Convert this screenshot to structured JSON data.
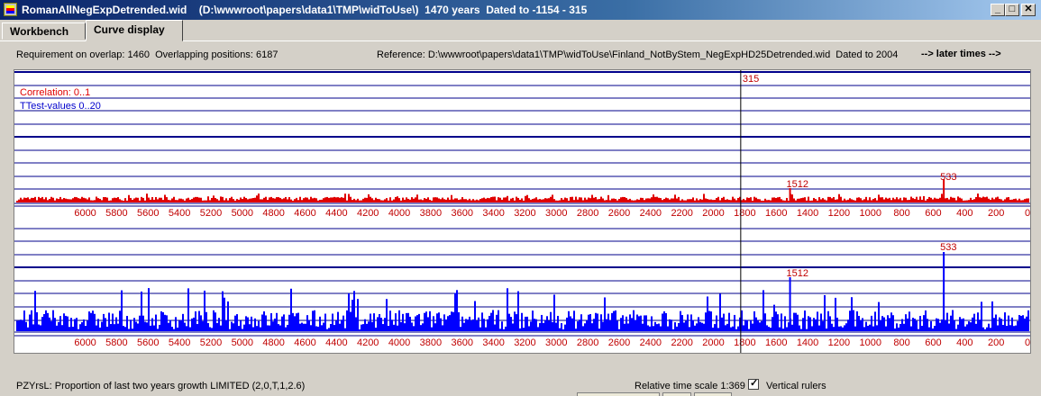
{
  "window": {
    "title": "RomanAllNegExpDetrended.wid    (D:\\wwwroot\\papers\\data1\\TMP\\widToUse\\)  1470 years  Dated to -1154 - 315",
    "min_label": "_",
    "max_label": "□",
    "close_label": "✕"
  },
  "tabs": [
    {
      "label": "Workbench"
    },
    {
      "label": "Curve display"
    }
  ],
  "info": {
    "overlap": "Requirement on overlap: 1460  Overlapping positions: 6187",
    "reference": "Reference: D:\\wwwroot\\papers\\data1\\TMP\\widToUse\\Finland_NotByStem_NegExpHD25Detrended.wid  Dated to 2004",
    "later_times": "--> later times -->"
  },
  "plot": {
    "correlation_label": "Correlation: 0..1",
    "ttest_label": "TTest-values 0..20",
    "marker_label": "315",
    "peak_labels": [
      "533",
      "1512"
    ],
    "colors": {
      "correlation": "#e00000",
      "ttest": "#0000ff",
      "grid": "#00008b",
      "axis_text": "#c00000"
    }
  },
  "chart_data": {
    "type": "bar",
    "x_ticks": [
      6000,
      5800,
      5600,
      5400,
      5200,
      5000,
      4800,
      4600,
      4400,
      4200,
      4000,
      3800,
      3600,
      3400,
      3200,
      3000,
      2800,
      2600,
      2400,
      2200,
      2000,
      1800,
      1600,
      1400,
      1200,
      1000,
      800,
      600,
      400,
      200,
      0
    ],
    "x_range": [
      6187,
      0
    ],
    "series": [
      {
        "name": "Correlation",
        "range": [
          0,
          1
        ],
        "peaks": [
          {
            "x": 533,
            "label": "533"
          },
          {
            "x": 1512,
            "label": "1512"
          }
        ]
      },
      {
        "name": "TTest",
        "range": [
          0,
          20
        ],
        "peaks": [
          {
            "x": 533,
            "label": "533"
          },
          {
            "x": 1512,
            "label": "1512"
          }
        ]
      }
    ],
    "vertical_ruler": 1826
  },
  "bottom": {
    "status": "PZYrsL: Proportion of last two years growth LIMITED (2,0,T,1,2.6)",
    "scale": "Relative time scale 1:369",
    "vertical_rulers": "Vertical rulers",
    "vertical_rulers_checked": true
  }
}
